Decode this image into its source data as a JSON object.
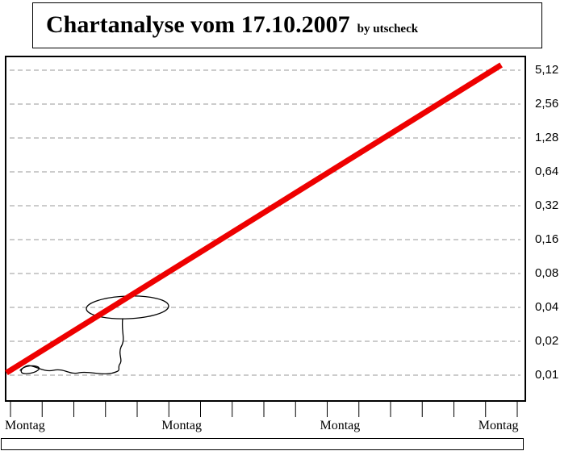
{
  "title": {
    "main": "Chartanalyse vom 17.10.2007",
    "byline": "by utscheck"
  },
  "chart_data": {
    "type": "line",
    "title": "Chartanalyse vom 17.10.2007",
    "subtitle": "by utscheck",
    "scale": "log2",
    "grid": {
      "style": "dashed-horizontal",
      "color": "#9a9a9a"
    },
    "y_axis_position": "right",
    "y_tick_labels": [
      "5,12",
      "2,56",
      "1,28",
      "0,64",
      "0,32",
      "0,16",
      "0,08",
      "0,04",
      "0,02",
      "0,01"
    ],
    "y_values": [
      5.12,
      2.56,
      1.28,
      0.64,
      0.32,
      0.16,
      0.08,
      0.04,
      0.02,
      0.01
    ],
    "x_tick_labels": [
      "Montag",
      "Montag",
      "Montag",
      "Montag"
    ],
    "x_minor_tick_count": 17,
    "x_label_tick_indexes": [
      0,
      5,
      10,
      15
    ],
    "series": [
      {
        "name": "trend-line",
        "color": "#ee0000",
        "stroke_width": 7,
        "description": "straight rising line on log scale from just above 0,01 to just above 5,12",
        "points": [
          {
            "x_frac": 0.0,
            "value": 0.0105
          },
          {
            "x_frac": 0.955,
            "value": 5.7
          }
        ]
      }
    ],
    "annotations": [
      {
        "name": "hand-drawn-doodle",
        "type": "freehand",
        "description": "small freehand ellipse with squiggly line descending to a scribble near the lower left"
      }
    ]
  }
}
